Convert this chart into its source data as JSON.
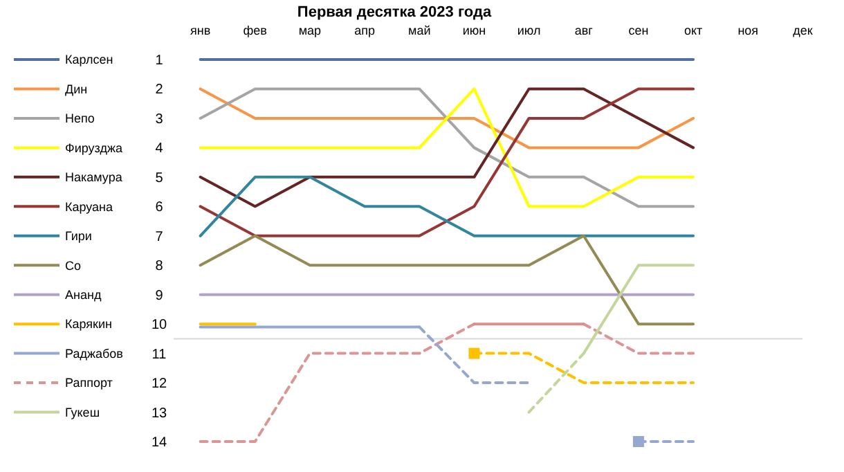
{
  "chart_data": {
    "type": "line",
    "title": "Первая десятка 2023 года",
    "categories": [
      "янв",
      "фев",
      "мар",
      "апр",
      "май",
      "июн",
      "июл",
      "авг",
      "сен",
      "окт",
      "ноя",
      "дек"
    ],
    "ylim": [
      14,
      1
    ],
    "yticks": [
      1,
      2,
      3,
      4,
      5,
      6,
      7,
      8,
      9,
      10,
      11,
      12,
      13,
      14
    ],
    "grid": false,
    "legend": "left",
    "line_style": "solid",
    "marker": "none",
    "ref_lines": [
      {
        "axis": "y",
        "value": 10.5,
        "color": "#d9d9d9"
      }
    ],
    "series": [
      {
        "name": "Карлсен",
        "color": "#4f6fa0",
        "values": [
          1,
          1,
          1,
          1,
          1,
          1,
          1,
          1,
          1,
          1,
          null,
          null
        ]
      },
      {
        "name": "Дин",
        "color": "#f79646",
        "values": [
          2,
          3,
          3,
          3,
          3,
          3,
          4,
          4,
          4,
          3,
          null,
          null
        ]
      },
      {
        "name": "Непо",
        "color": "#a5a5a5",
        "values": [
          3,
          2,
          2,
          2,
          2,
          4,
          5,
          5,
          6,
          6,
          null,
          null
        ]
      },
      {
        "name": "Фирузджа",
        "color": "#ffff00",
        "values": [
          4,
          4,
          4,
          4,
          4,
          2,
          6,
          6,
          5,
          5,
          null,
          null
        ]
      },
      {
        "name": "Накамура",
        "color": "#632523",
        "values": [
          5,
          6,
          5,
          5,
          5,
          5,
          2,
          2,
          3,
          4,
          null,
          null
        ]
      },
      {
        "name": "Каруана",
        "color": "#953735",
        "values": [
          6,
          7,
          7,
          7,
          7,
          6,
          3,
          3,
          2,
          2,
          null,
          null
        ]
      },
      {
        "name": "Гири",
        "color": "#31859c",
        "values": [
          7,
          5,
          5,
          6,
          6,
          7,
          7,
          7,
          7,
          7,
          null,
          null
        ]
      },
      {
        "name": "Со",
        "color": "#948a54",
        "values": [
          8,
          7,
          8,
          8,
          8,
          8,
          8,
          7,
          10,
          10,
          null,
          null
        ]
      },
      {
        "name": "Ананд",
        "color": "#b3a2c7",
        "values": [
          9,
          9,
          9,
          9,
          9,
          9,
          9,
          9,
          9,
          9,
          null,
          null
        ]
      },
      {
        "name": "Карякин",
        "color": "#ffc000",
        "values": [
          10,
          10,
          null,
          null,
          null,
          null,
          null,
          null,
          null,
          null,
          null,
          null
        ]
      },
      {
        "name": "Раджабов",
        "color": "#95a8d0",
        "values": [
          10.1,
          10.1,
          10.1,
          10.1,
          10.1,
          null,
          null,
          null,
          null,
          null,
          null,
          null
        ]
      },
      {
        "name": "Раппорт",
        "color": "#d99694",
        "line_style": "dashed",
        "values": [
          14,
          14,
          11,
          11,
          11,
          10,
          null,
          10,
          11,
          11,
          null,
          null
        ]
      },
      {
        "name": "Гукеш",
        "color": "#c3d69b",
        "values": [
          null,
          null,
          null,
          null,
          null,
          null,
          null,
          11,
          8,
          8,
          null,
          null
        ]
      },
      {
        "color": "#ffc000",
        "line_style": "dashed",
        "values": [
          null,
          null,
          null,
          null,
          null,
          11,
          11,
          12,
          12,
          12,
          null,
          null
        ]
      },
      {
        "type": "scatter",
        "marker": "square",
        "color": "#ffc000",
        "values": [
          null,
          null,
          null,
          null,
          null,
          11,
          null,
          null,
          null,
          null,
          null,
          null
        ]
      },
      {
        "color": "#95a8d0",
        "line_style": "dashed",
        "values": [
          null,
          null,
          null,
          null,
          10.1,
          12,
          12,
          null,
          14,
          14,
          null,
          null
        ]
      },
      {
        "type": "scatter",
        "marker": "square",
        "color": "#95a8d0",
        "values": [
          null,
          null,
          null,
          null,
          null,
          null,
          null,
          null,
          14,
          null,
          null,
          null
        ]
      },
      {
        "color": "#d8908e",
        "values": [
          null,
          null,
          null,
          null,
          null,
          10,
          10,
          10,
          null,
          null,
          null,
          null
        ]
      },
      {
        "color": "#c3d69b",
        "line_style": "dashed",
        "values": [
          null,
          null,
          null,
          null,
          null,
          null,
          13,
          11,
          null,
          null,
          null,
          null
        ]
      }
    ]
  }
}
